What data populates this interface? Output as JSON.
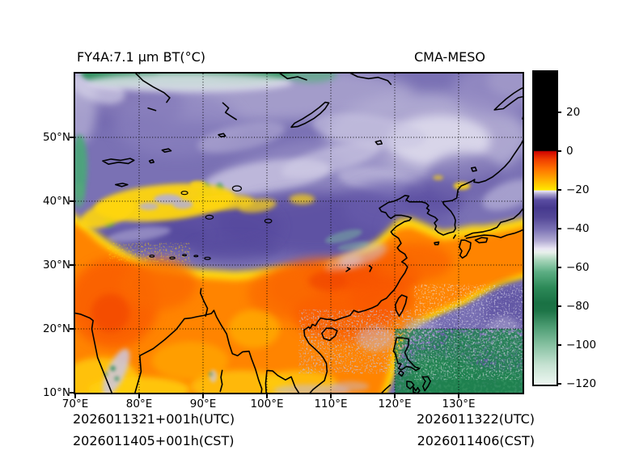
{
  "header": {
    "title_left": "FY4A:7.1 μm BT(°C)",
    "title_right": "CMA-MESO"
  },
  "axes": {
    "x_ticks": [
      "70°E",
      "80°E",
      "90°E",
      "100°E",
      "110°E",
      "120°E",
      "130°E"
    ],
    "y_ticks": [
      "50°N",
      "40°N",
      "30°N",
      "20°N",
      "10°N"
    ]
  },
  "colorbar": {
    "tick_labels": [
      "20",
      "0",
      "−20",
      "−40",
      "−60",
      "−80",
      "−100",
      "−120"
    ],
    "stops": [
      [
        0,
        "#000000"
      ],
      [
        0.2516,
        "#000000"
      ],
      [
        0.2547,
        "#d00500"
      ],
      [
        0.2795,
        "#ef3d00"
      ],
      [
        0.3106,
        "#ff7300"
      ],
      [
        0.3416,
        "#ffa800"
      ],
      [
        0.3727,
        "#ffdf00"
      ],
      [
        0.3776,
        "#ffe900"
      ],
      [
        0.3801,
        "#eeeaf6"
      ],
      [
        0.3913,
        "#aaa2cf"
      ],
      [
        0.4099,
        "#5a4da2"
      ],
      [
        0.4348,
        "#46398f"
      ],
      [
        0.4658,
        "#544897"
      ],
      [
        0.5031,
        "#7b72b5"
      ],
      [
        0.5404,
        "#b2abd3"
      ],
      [
        0.5652,
        "#e9e6f3"
      ],
      [
        0.5776,
        "#e7f0ea"
      ],
      [
        0.6025,
        "#a6d4b9"
      ],
      [
        0.6398,
        "#5cae83"
      ],
      [
        0.6894,
        "#2d8a58"
      ],
      [
        0.7391,
        "#1a7144"
      ],
      [
        0.764,
        "#1d7447"
      ],
      [
        0.8137,
        "#4c9c72"
      ],
      [
        0.8758,
        "#89c2a3"
      ],
      [
        0.9379,
        "#c6e2d2"
      ],
      [
        1,
        "#edf6f1"
      ]
    ]
  },
  "footer": {
    "left_line1": "2026011321+001h(UTC)",
    "left_line2": "2026011405+001h(CST)",
    "right_line1": "2026011322(UTC)",
    "right_line2": "2026011406(CST)"
  },
  "chart_data": {
    "type": "heatmap",
    "title": "FY4A:7.1 μm BT(°C)",
    "right_title": "CMA-MESO",
    "satellite": "FY4A",
    "channel_wavelength_um": 7.1,
    "variable": "infrared brightness temperature (°C)",
    "extent": {
      "lon": [
        70,
        140
      ],
      "lat": [
        10,
        60
      ]
    },
    "x_tick_values_deg_e": [
      70,
      80,
      90,
      100,
      110,
      120,
      130
    ],
    "y_tick_values_deg_n": [
      10,
      20,
      30,
      40,
      50
    ],
    "grid": "dotted black lines at 10 degree spacing",
    "colorbar": {
      "min": -120,
      "max": 41,
      "tick_values": [
        20,
        0,
        -20,
        -40,
        -60,
        -80,
        -100,
        -120
      ],
      "orientation": "vertical",
      "position": "right"
    },
    "times": {
      "forecast_utc": "2026011321+001h(UTC)",
      "forecast_cst": "2026011405+001h(CST)",
      "valid_utc": "2026011322(UTC)",
      "valid_cst": "2026011406(CST)"
    },
    "features": [
      "warm (orange/red, BT ~0 to -15) air mass over southern half (south of ~30N) and along west edge",
      "cold purple cloud shield (BT ~ -25 to -45) covering most of the north half",
      "very cold green band (BT < -55) along top edge 70-105E",
      "yellow clear band (~ -18) over Tarim basin 36-41N 73-99E with lavender gaps",
      "deep convection (purple/green speckled) over Philippine Sea SE corner",
      "black coastlines and lake outlines, dotted graticule"
    ]
  }
}
